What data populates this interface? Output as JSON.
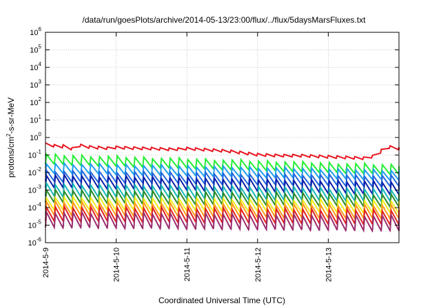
{
  "chart_data": {
    "type": "line",
    "title": "/data/run/goesPlots/archive/2014-05-13/23:00/flux/../flux/5daysMarsFluxes.txt",
    "xlabel": "Coordinated Universal Time (UTC)",
    "ylabel": {
      "prefix": "protons/cm",
      "sup": "2",
      "suffix": "-s-sr-MeV"
    },
    "y_scale": "log",
    "y_exp_range": [
      -6,
      6
    ],
    "y_ticks": [
      {
        "base": "10",
        "exp": "-6"
      },
      {
        "base": "10",
        "exp": "-5"
      },
      {
        "base": "10",
        "exp": "-4"
      },
      {
        "base": "10",
        "exp": "-3"
      },
      {
        "base": "10",
        "exp": "-2"
      },
      {
        "base": "10",
        "exp": "-1"
      },
      {
        "base": "10",
        "exp": "0"
      },
      {
        "base": "10",
        "exp": "1"
      },
      {
        "base": "10",
        "exp": "2"
      },
      {
        "base": "10",
        "exp": "3"
      },
      {
        "base": "10",
        "exp": "4"
      },
      {
        "base": "10",
        "exp": "5"
      },
      {
        "base": "10",
        "exp": "6"
      }
    ],
    "x_range_days": [
      0,
      5
    ],
    "x_ticks": [
      {
        "day": 0,
        "label": "2014-5-9"
      },
      {
        "day": 1,
        "label": "2014-5-10"
      },
      {
        "day": 2,
        "label": "2014-5-11"
      },
      {
        "day": 3,
        "label": "2014-5-12"
      },
      {
        "day": 4,
        "label": "2014-5-13"
      }
    ],
    "grid": true,
    "series": [
      {
        "color": "#e8141e",
        "mode": "jagged",
        "points": [
          [
            0.0,
            -0.4
          ],
          [
            0.08,
            -0.45
          ],
          [
            0.16,
            -0.53
          ],
          [
            0.2,
            -0.63
          ],
          [
            0.25,
            -0.5
          ],
          [
            0.33,
            -0.58
          ],
          [
            0.38,
            -0.68
          ],
          [
            0.42,
            -0.4
          ],
          [
            0.5,
            -0.48
          ],
          [
            0.6,
            -0.55
          ],
          [
            0.7,
            -0.6
          ],
          [
            0.8,
            -0.58
          ],
          [
            0.9,
            -0.65
          ],
          [
            1.0,
            -0.58
          ],
          [
            1.2,
            -0.62
          ],
          [
            1.5,
            -0.65
          ],
          [
            1.8,
            -0.7
          ],
          [
            2.0,
            -0.65
          ],
          [
            2.3,
            -0.72
          ],
          [
            2.6,
            -0.8
          ],
          [
            2.8,
            -0.9
          ],
          [
            3.0,
            -1.0
          ],
          [
            3.3,
            -1.05
          ],
          [
            3.6,
            -1.05
          ],
          [
            3.9,
            -1.1
          ],
          [
            4.2,
            -1.15
          ],
          [
            4.5,
            -1.2
          ],
          [
            4.7,
            -1.05
          ],
          [
            4.78,
            -0.6
          ],
          [
            4.9,
            -0.55
          ],
          [
            5.0,
            -0.65
          ]
        ],
        "amp": 0.09
      },
      {
        "color": "#22ee33",
        "mode": "saw",
        "base": [
          -1.25,
          -1.85
        ],
        "amp": 0.55
      },
      {
        "color": "#1f9fee",
        "mode": "saw",
        "base": [
          -1.75,
          -2.15
        ],
        "amp": 0.55
      },
      {
        "color": "#2266dd",
        "mode": "saw",
        "base": [
          -2.2,
          -2.5
        ],
        "amp": 0.6
      },
      {
        "color": "#0b1fa8",
        "mode": "saw",
        "base": [
          -2.5,
          -2.9
        ],
        "amp": 0.7
      },
      {
        "color": "#17b8b8",
        "mode": "saw",
        "base": [
          -3.0,
          -3.3
        ],
        "amp": 0.7
      },
      {
        "color": "#2a8a2a",
        "mode": "saw",
        "base": [
          -3.35,
          -3.6
        ],
        "amp": 0.7
      },
      {
        "color": "#f2ee1a",
        "mode": "saw",
        "base": [
          -3.75,
          -3.95
        ],
        "amp": 0.7
      },
      {
        "color": "#ff9a1a",
        "mode": "saw",
        "base": [
          -4.05,
          -4.25
        ],
        "amp": 0.75
      },
      {
        "color": "#e02020",
        "mode": "saw",
        "base": [
          -4.35,
          -4.55
        ],
        "amp": 0.8
      },
      {
        "color": "#9b2d6e",
        "mode": "saw",
        "base": [
          -4.7,
          -4.9
        ],
        "amp": 0.85
      }
    ],
    "saw_period_days": 0.125
  }
}
